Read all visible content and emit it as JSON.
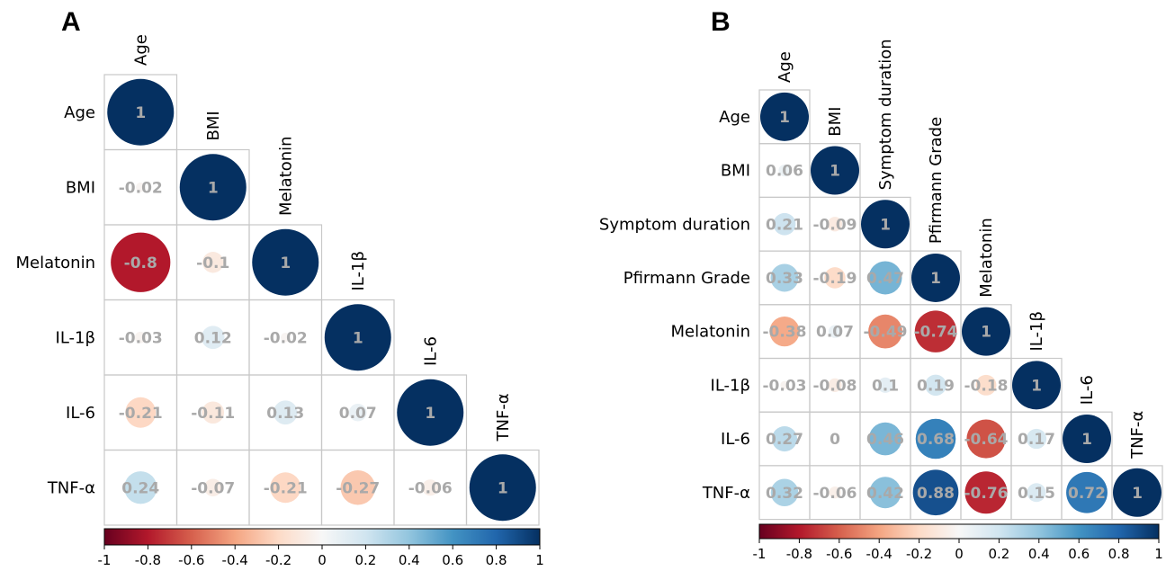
{
  "chart_data": [
    {
      "type": "heatmap",
      "panel": "A",
      "variables": [
        "Age",
        "BMI",
        "Melatonin",
        "IL-1β",
        "IL-6",
        "TNF-α"
      ],
      "matrix": [
        [
          1
        ],
        [
          -0.02,
          1
        ],
        [
          -0.8,
          -0.1,
          1
        ],
        [
          -0.03,
          0.12,
          -0.02,
          1
        ],
        [
          -0.21,
          -0.11,
          0.13,
          0.07,
          1
        ],
        [
          0.24,
          -0.07,
          -0.21,
          -0.27,
          -0.06,
          1
        ]
      ],
      "labels": [
        [
          "1"
        ],
        [
          "-0.02",
          "1"
        ],
        [
          "-0.8",
          "-0.1",
          "1"
        ],
        [
          "-0.03",
          "0.12",
          "-0.02",
          "1"
        ],
        [
          "-0.21",
          "-0.11",
          "0.13",
          "0.07",
          "1"
        ],
        [
          "0.24",
          "-0.07",
          "-0.21",
          "-0.27",
          "-0.06",
          "1"
        ]
      ],
      "colorbar": {
        "range": [
          -1,
          1
        ],
        "ticks": [
          "-1",
          "-0.8",
          "-0.6",
          "-0.4",
          "-0.2",
          "0",
          "0.2",
          "0.4",
          "0.6",
          "0.8",
          "1"
        ]
      }
    },
    {
      "type": "heatmap",
      "panel": "B",
      "variables": [
        "Age",
        "BMI",
        "Symptom duration",
        "Pfirmann Grade",
        "Melatonin",
        "IL-1β",
        "IL-6",
        "TNF-α"
      ],
      "matrix": [
        [
          1
        ],
        [
          0.06,
          1
        ],
        [
          0.21,
          -0.09,
          1
        ],
        [
          0.33,
          -0.19,
          0.47,
          1
        ],
        [
          -0.38,
          0.07,
          -0.49,
          -0.74,
          1
        ],
        [
          -0.03,
          -0.08,
          0.1,
          0.19,
          -0.18,
          1
        ],
        [
          0.27,
          0,
          0.46,
          0.68,
          -0.64,
          0.17,
          1
        ],
        [
          0.32,
          -0.06,
          0.42,
          0.88,
          -0.76,
          0.15,
          0.72,
          1
        ]
      ],
      "labels": [
        [
          "1"
        ],
        [
          "0.06",
          "1"
        ],
        [
          "0.21",
          "-0.09",
          "1"
        ],
        [
          "0.33",
          "-0.19",
          "0.47",
          "1"
        ],
        [
          "-0.38",
          "0.07",
          "-0.49",
          "-0.74",
          "1"
        ],
        [
          "-0.03",
          "-0.08",
          "0.1",
          "0.19",
          "-0.18",
          "1"
        ],
        [
          "0.27",
          "0",
          "0.46",
          "0.68",
          "-0.64",
          "0.17",
          "1"
        ],
        [
          "0.32",
          "-0.06",
          "0.42",
          "0.88",
          "-0.76",
          "0.15",
          "0.72",
          "1"
        ]
      ],
      "colorbar": {
        "range": [
          -1,
          1
        ],
        "ticks": [
          "-1",
          "-0.8",
          "-0.6",
          "-0.4",
          "-0.2",
          "0",
          "0.2",
          "0.4",
          "0.6",
          "0.8",
          "1"
        ]
      }
    }
  ]
}
